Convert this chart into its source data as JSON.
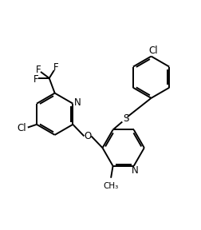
{
  "bg_color": "#ffffff",
  "bond_color": "#000000",
  "line_width": 1.4,
  "figsize": [
    2.52,
    2.88
  ],
  "dpi": 100,
  "xlim": [
    0,
    10
  ],
  "ylim": [
    0,
    11.5
  ]
}
